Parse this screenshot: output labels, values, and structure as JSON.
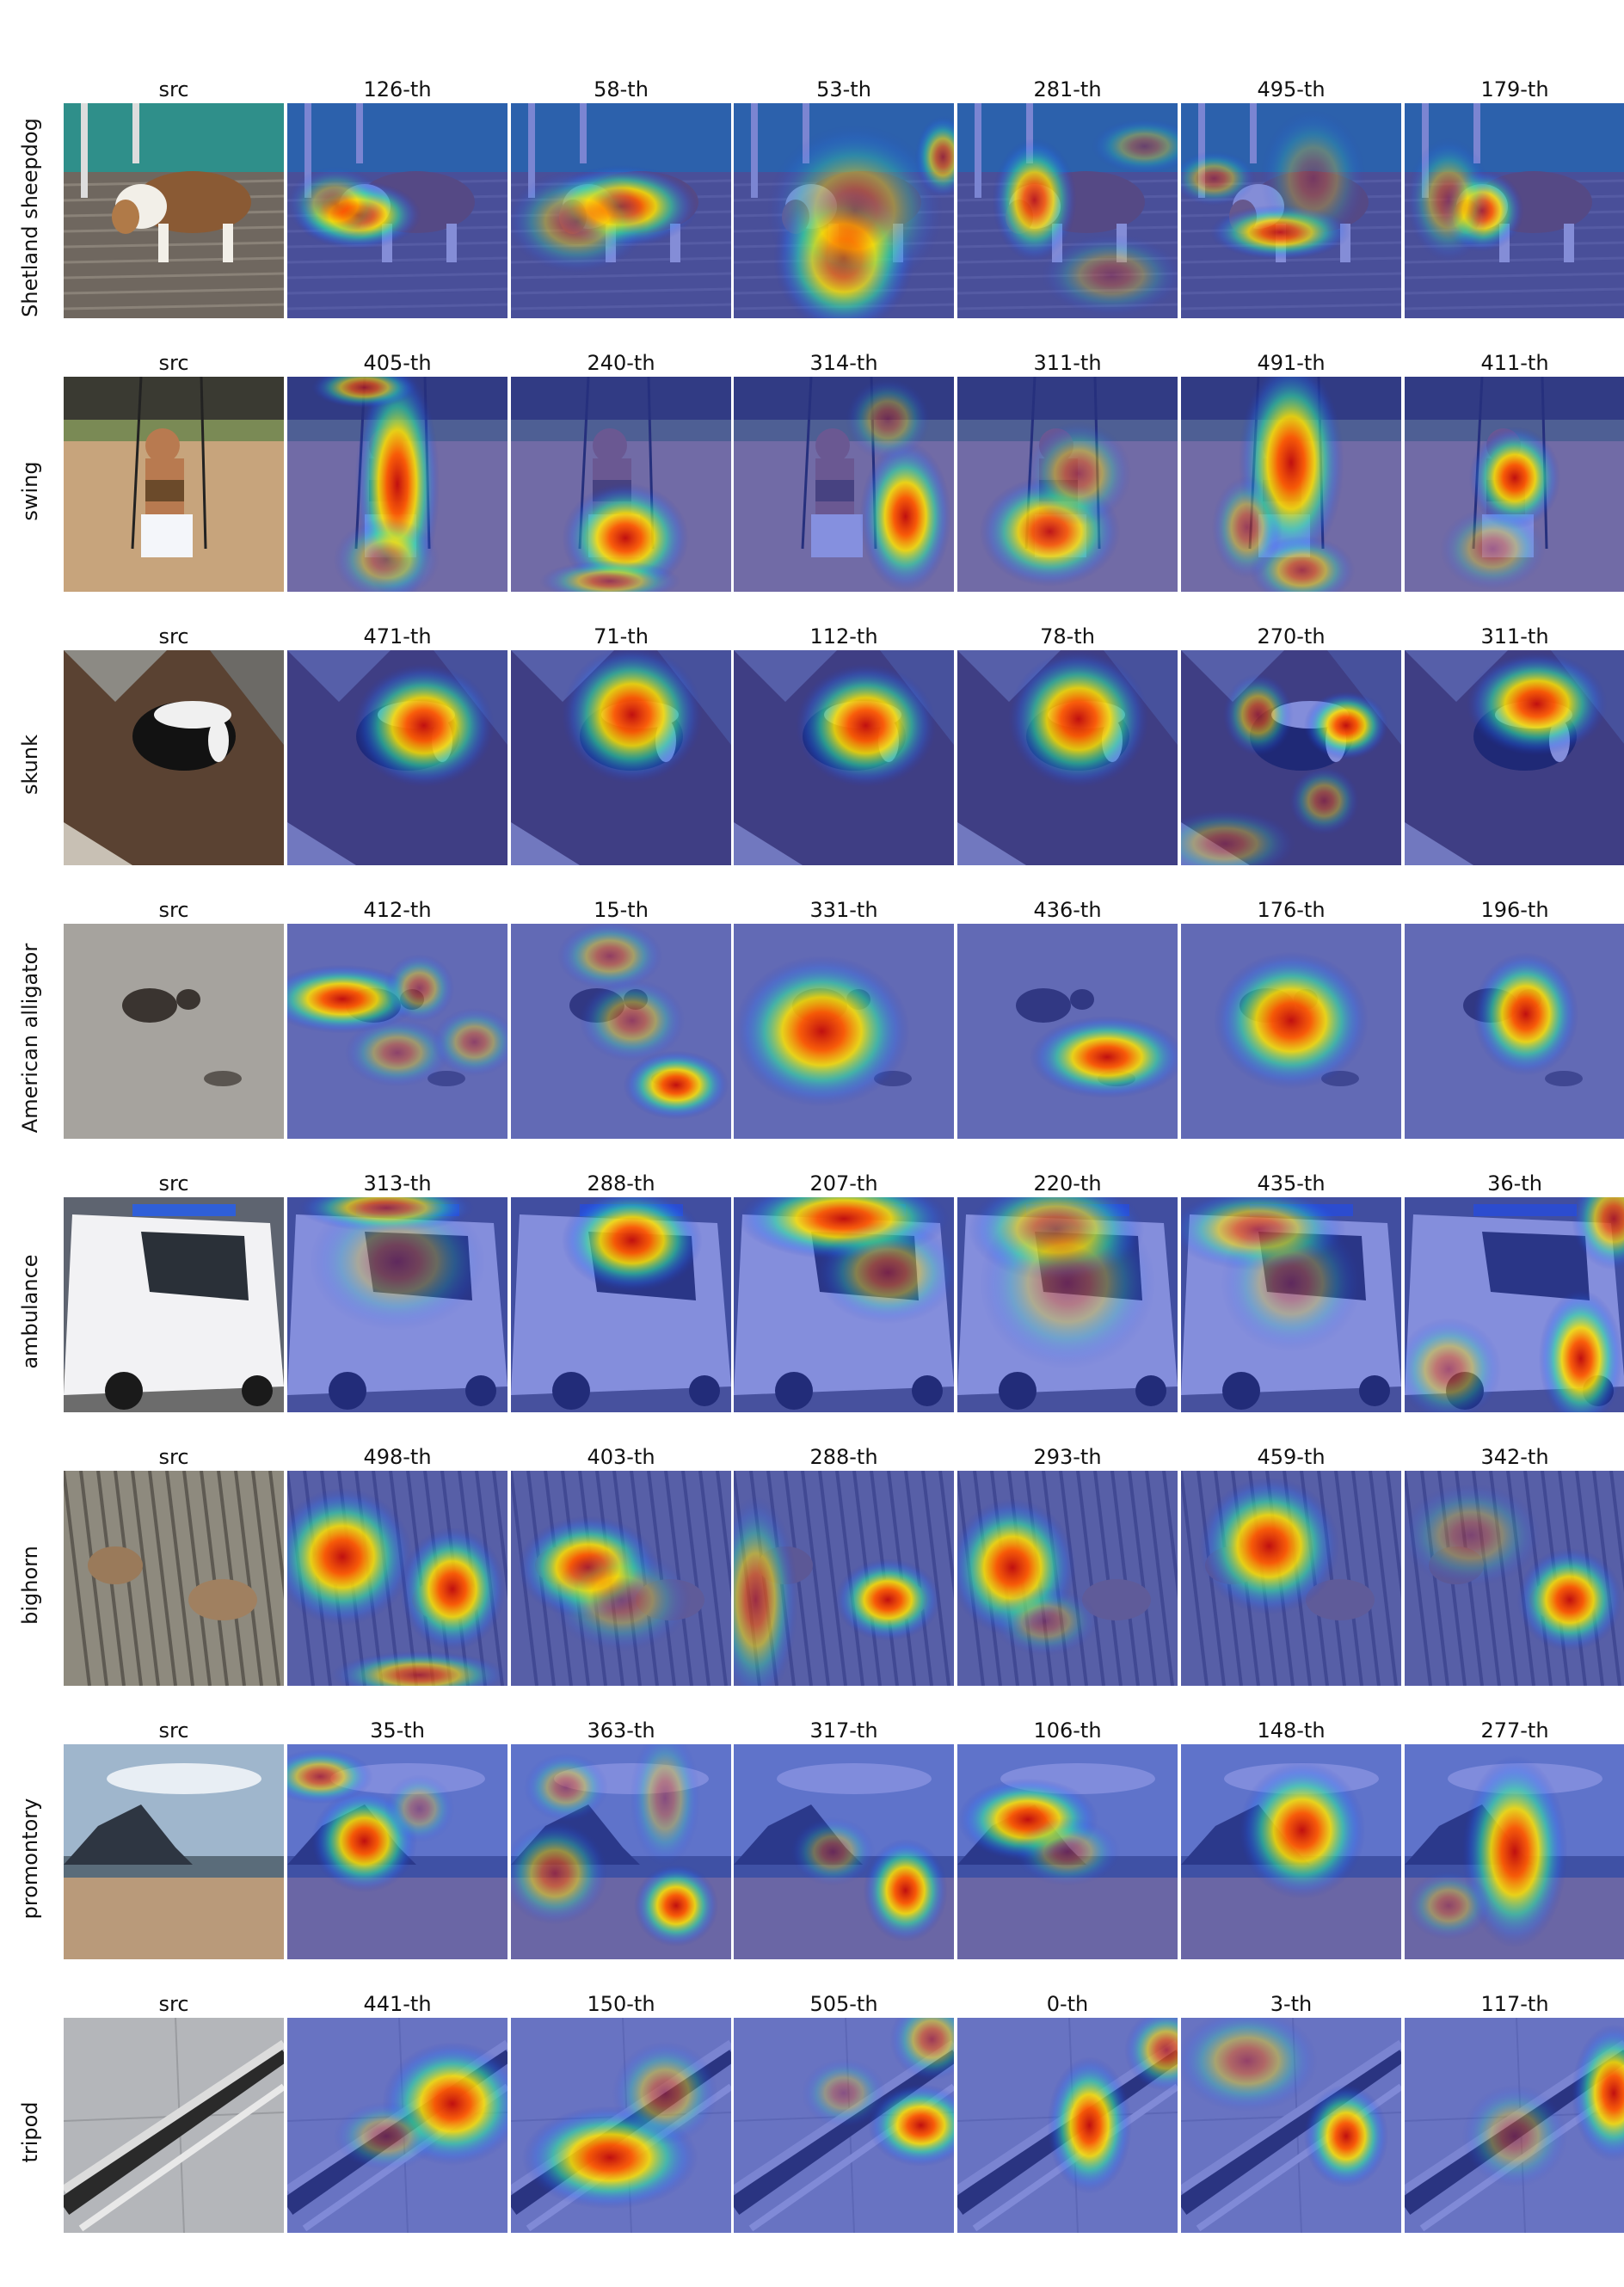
{
  "figure": {
    "rows": [
      {
        "label": "Shetland sheepdog",
        "scene": "dog",
        "titles": [
          "src",
          "126-th",
          "58-th",
          "53-th",
          "281-th",
          "495-th",
          "179-th"
        ],
        "heat": [
          null,
          [
            [
              0.32,
              0.52,
              0.18,
              0.1,
              1.0
            ],
            [
              0.22,
              0.47,
              0.14,
              0.11,
              0.5
            ]
          ],
          [
            [
              0.5,
              0.48,
              0.22,
              0.12,
              1.0
            ],
            [
              0.3,
              0.55,
              0.2,
              0.15,
              0.5
            ]
          ],
          [
            [
              0.5,
              0.72,
              0.2,
              0.22,
              1.0
            ],
            [
              0.55,
              0.5,
              0.25,
              0.25,
              0.5
            ],
            [
              0.95,
              0.25,
              0.08,
              0.12,
              0.7
            ]
          ],
          [
            [
              0.35,
              0.45,
              0.12,
              0.18,
              0.9
            ],
            [
              0.85,
              0.2,
              0.15,
              0.08,
              0.4
            ],
            [
              0.7,
              0.8,
              0.2,
              0.12,
              0.35
            ]
          ],
          [
            [
              0.45,
              0.6,
              0.2,
              0.08,
              0.9
            ],
            [
              0.15,
              0.35,
              0.12,
              0.08,
              0.5
            ],
            [
              0.6,
              0.35,
              0.15,
              0.2,
              0.3
            ]
          ],
          [
            [
              0.35,
              0.5,
              0.12,
              0.12,
              0.95
            ],
            [
              0.2,
              0.45,
              0.12,
              0.18,
              0.5
            ]
          ]
        ]
      },
      {
        "label": "swing",
        "scene": "swing",
        "titles": [
          "src",
          "405-th",
          "240-th",
          "314-th",
          "311-th",
          "491-th",
          "411-th"
        ],
        "heat": [
          null,
          [
            [
              0.5,
              0.5,
              0.12,
              0.35,
              1.0
            ],
            [
              0.35,
              0.05,
              0.15,
              0.06,
              0.7
            ],
            [
              0.45,
              0.85,
              0.15,
              0.12,
              0.5
            ]
          ],
          [
            [
              0.52,
              0.75,
              0.18,
              0.16,
              1.0
            ],
            [
              0.45,
              0.95,
              0.2,
              0.06,
              0.6
            ]
          ],
          [
            [
              0.78,
              0.65,
              0.13,
              0.22,
              1.0
            ],
            [
              0.7,
              0.2,
              0.12,
              0.12,
              0.4
            ]
          ],
          [
            [
              0.42,
              0.72,
              0.2,
              0.16,
              0.95
            ],
            [
              0.55,
              0.45,
              0.15,
              0.15,
              0.5
            ]
          ],
          [
            [
              0.5,
              0.4,
              0.15,
              0.3,
              1.0
            ],
            [
              0.55,
              0.9,
              0.15,
              0.1,
              0.6
            ],
            [
              0.3,
              0.7,
              0.1,
              0.15,
              0.5
            ]
          ],
          [
            [
              0.5,
              0.47,
              0.13,
              0.15,
              1.0
            ],
            [
              0.4,
              0.8,
              0.15,
              0.12,
              0.4
            ]
          ]
        ]
      },
      {
        "label": "skunk",
        "scene": "skunk",
        "titles": [
          "src",
          "471-th",
          "71-th",
          "112-th",
          "78-th",
          "270-th",
          "311-th"
        ],
        "heat": [
          null,
          [
            [
              0.62,
              0.35,
              0.2,
              0.18,
              1.0
            ]
          ],
          [
            [
              0.55,
              0.3,
              0.2,
              0.2,
              1.0
            ]
          ],
          [
            [
              0.6,
              0.35,
              0.2,
              0.18,
              1.0
            ]
          ],
          [
            [
              0.55,
              0.32,
              0.2,
              0.2,
              1.0
            ]
          ],
          [
            [
              0.75,
              0.35,
              0.12,
              0.1,
              1.0
            ],
            [
              0.35,
              0.3,
              0.1,
              0.12,
              0.6
            ],
            [
              0.2,
              0.9,
              0.2,
              0.1,
              0.4
            ],
            [
              0.65,
              0.7,
              0.1,
              0.1,
              0.45
            ]
          ],
          [
            [
              0.6,
              0.25,
              0.2,
              0.15,
              1.0
            ]
          ]
        ]
      },
      {
        "label": "American alligator",
        "scene": "gator",
        "titles": [
          "src",
          "412-th",
          "15-th",
          "331-th",
          "436-th",
          "176-th",
          "196-th"
        ],
        "heat": [
          null,
          [
            [
              0.25,
              0.35,
              0.22,
              0.1,
              1.0
            ],
            [
              0.6,
              0.3,
              0.1,
              0.1,
              0.5
            ],
            [
              0.5,
              0.6,
              0.15,
              0.1,
              0.45
            ],
            [
              0.85,
              0.55,
              0.12,
              0.1,
              0.45
            ]
          ],
          [
            [
              0.75,
              0.75,
              0.15,
              0.1,
              1.0
            ],
            [
              0.45,
              0.15,
              0.15,
              0.1,
              0.5
            ],
            [
              0.55,
              0.45,
              0.15,
              0.12,
              0.5
            ]
          ],
          [
            [
              0.4,
              0.5,
              0.25,
              0.22,
              1.0
            ]
          ],
          [
            [
              0.68,
              0.62,
              0.22,
              0.12,
              1.0
            ]
          ],
          [
            [
              0.5,
              0.45,
              0.22,
              0.2,
              1.0
            ]
          ],
          [
            [
              0.55,
              0.42,
              0.15,
              0.18,
              1.0
            ]
          ]
        ]
      },
      {
        "label": "ambulance",
        "scene": "ambulance",
        "titles": [
          "src",
          "313-th",
          "288-th",
          "207-th",
          "220-th",
          "435-th",
          "36-th"
        ],
        "heat": [
          null,
          [
            [
              0.45,
              0.05,
              0.25,
              0.07,
              0.8
            ],
            [
              0.5,
              0.3,
              0.25,
              0.2,
              0.35
            ]
          ],
          [
            [
              0.55,
              0.2,
              0.2,
              0.15,
              1.0
            ]
          ],
          [
            [
              0.5,
              0.1,
              0.3,
              0.12,
              1.0
            ],
            [
              0.7,
              0.35,
              0.2,
              0.15,
              0.5
            ]
          ],
          [
            [
              0.45,
              0.15,
              0.25,
              0.15,
              0.8
            ],
            [
              0.5,
              0.4,
              0.25,
              0.25,
              0.4
            ]
          ],
          [
            [
              0.35,
              0.15,
              0.25,
              0.12,
              0.7
            ],
            [
              0.5,
              0.4,
              0.2,
              0.2,
              0.35
            ]
          ],
          [
            [
              0.8,
              0.75,
              0.12,
              0.2,
              1.0
            ],
            [
              0.95,
              0.1,
              0.12,
              0.15,
              0.8
            ],
            [
              0.2,
              0.8,
              0.15,
              0.15,
              0.5
            ]
          ]
        ]
      },
      {
        "label": "bighorn",
        "scene": "bighorn",
        "titles": [
          "src",
          "498-th",
          "403-th",
          "288-th",
          "293-th",
          "459-th",
          "342-th"
        ],
        "heat": [
          null,
          [
            [
              0.25,
              0.4,
              0.2,
              0.2,
              1.0
            ],
            [
              0.75,
              0.55,
              0.15,
              0.18,
              1.0
            ],
            [
              0.6,
              0.95,
              0.25,
              0.07,
              0.7
            ]
          ],
          [
            [
              0.35,
              0.45,
              0.2,
              0.15,
              1.0
            ],
            [
              0.5,
              0.6,
              0.2,
              0.15,
              0.4
            ]
          ],
          [
            [
              0.7,
              0.6,
              0.15,
              0.12,
              1.0
            ],
            [
              0.1,
              0.6,
              0.12,
              0.3,
              0.65
            ]
          ],
          [
            [
              0.25,
              0.45,
              0.18,
              0.2,
              1.0
            ],
            [
              0.4,
              0.7,
              0.15,
              0.1,
              0.35
            ]
          ],
          [
            [
              0.4,
              0.35,
              0.2,
              0.2,
              1.0
            ]
          ],
          [
            [
              0.75,
              0.6,
              0.15,
              0.15,
              1.0
            ],
            [
              0.3,
              0.3,
              0.2,
              0.15,
              0.35
            ]
          ]
        ]
      },
      {
        "label": "promontory",
        "scene": "promontory",
        "titles": [
          "src",
          "35-th",
          "363-th",
          "317-th",
          "106-th",
          "148-th",
          "277-th"
        ],
        "heat": [
          null,
          [
            [
              0.35,
              0.45,
              0.15,
              0.15,
              1.0
            ],
            [
              0.15,
              0.15,
              0.15,
              0.08,
              0.7
            ],
            [
              0.6,
              0.3,
              0.1,
              0.1,
              0.35
            ]
          ],
          [
            [
              0.75,
              0.75,
              0.12,
              0.12,
              1.0
            ],
            [
              0.2,
              0.6,
              0.15,
              0.15,
              0.6
            ],
            [
              0.25,
              0.2,
              0.12,
              0.1,
              0.45
            ],
            [
              0.7,
              0.25,
              0.1,
              0.2,
              0.4
            ]
          ],
          [
            [
              0.78,
              0.68,
              0.12,
              0.15,
              1.0
            ],
            [
              0.45,
              0.5,
              0.12,
              0.1,
              0.4
            ]
          ],
          [
            [
              0.32,
              0.35,
              0.2,
              0.12,
              1.0
            ],
            [
              0.5,
              0.5,
              0.15,
              0.1,
              0.4
            ]
          ],
          [
            [
              0.55,
              0.4,
              0.18,
              0.2,
              1.0
            ]
          ],
          [
            [
              0.5,
              0.5,
              0.15,
              0.28,
              1.0
            ],
            [
              0.2,
              0.75,
              0.12,
              0.1,
              0.4
            ]
          ]
        ]
      },
      {
        "label": "tripod",
        "scene": "tripod",
        "titles": [
          "src",
          "441-th",
          "150-th",
          "505-th",
          "0-th",
          "3-th",
          "117-th"
        ],
        "heat": [
          null,
          [
            [
              0.75,
              0.4,
              0.2,
              0.18,
              1.0
            ],
            [
              0.45,
              0.55,
              0.15,
              0.1,
              0.4
            ]
          ],
          [
            [
              0.45,
              0.65,
              0.25,
              0.15,
              1.0
            ],
            [
              0.7,
              0.35,
              0.15,
              0.15,
              0.5
            ]
          ],
          [
            [
              0.85,
              0.5,
              0.15,
              0.12,
              1.0
            ],
            [
              0.9,
              0.1,
              0.12,
              0.12,
              0.6
            ],
            [
              0.5,
              0.35,
              0.12,
              0.1,
              0.35
            ]
          ],
          [
            [
              0.6,
              0.5,
              0.12,
              0.2,
              1.0
            ],
            [
              0.95,
              0.15,
              0.12,
              0.12,
              0.7
            ]
          ],
          [
            [
              0.75,
              0.55,
              0.12,
              0.15,
              1.0
            ],
            [
              0.3,
              0.2,
              0.2,
              0.15,
              0.5
            ]
          ],
          [
            [
              0.95,
              0.35,
              0.12,
              0.2,
              1.0
            ],
            [
              0.5,
              0.55,
              0.15,
              0.15,
              0.4
            ]
          ]
        ]
      }
    ]
  },
  "colors": {
    "heat_background": "#2a3cc8",
    "heat_hot": "#e01010",
    "page_background": "#ffffff"
  }
}
